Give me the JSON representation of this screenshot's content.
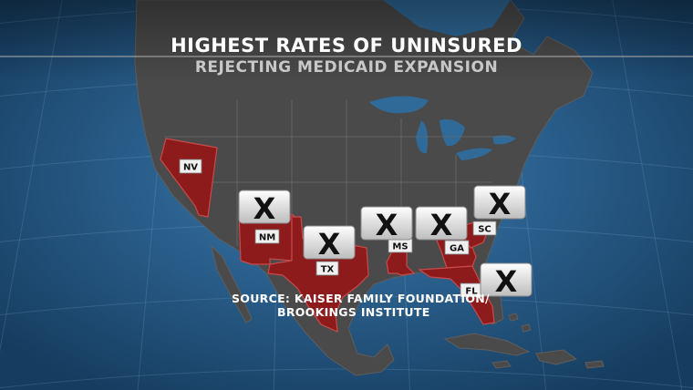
{
  "header": {
    "title": "HIGHEST RATES OF UNINSURED",
    "subtitle": "REJECTING MEDICAID EXPANSION"
  },
  "source": {
    "line1": "SOURCE: KAISER FAMILY FOUNDATION/",
    "line2": "BROOKINGS INSTITUTE"
  },
  "x_mark": "X",
  "states": [
    {
      "abbr": "NV",
      "name": "Nevada",
      "has_x": false
    },
    {
      "abbr": "NM",
      "name": "New Mexico",
      "has_x": true
    },
    {
      "abbr": "TX",
      "name": "Texas",
      "has_x": true
    },
    {
      "abbr": "MS",
      "name": "Mississippi",
      "has_x": true
    },
    {
      "abbr": "GA",
      "name": "Georgia",
      "has_x": true
    },
    {
      "abbr": "SC",
      "name": "South Carolina",
      "has_x": true
    },
    {
      "abbr": "FL",
      "name": "Florida",
      "has_x": true
    }
  ],
  "colors": {
    "ocean": "#2a5f8c",
    "land": "#4a4a4a",
    "highlight_state": "#8e1b1b",
    "badge": "#e9e9e9"
  }
}
